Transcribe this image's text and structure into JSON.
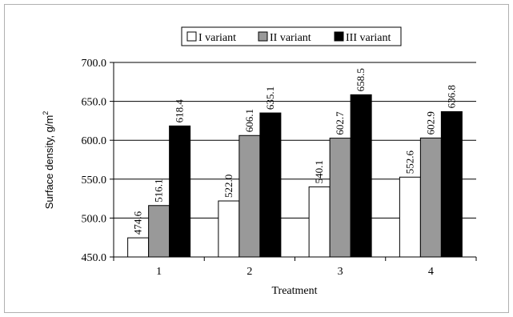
{
  "chart_data": {
    "type": "bar",
    "categories": [
      "1",
      "2",
      "3",
      "4"
    ],
    "series": [
      {
        "name": "I variant",
        "values": [
          474.6,
          522.0,
          540.1,
          552.6
        ],
        "labels": [
          "474.6",
          "522.0",
          "540.1",
          "552.6"
        ],
        "color": "#ffffff"
      },
      {
        "name": "II variant",
        "values": [
          516.1,
          606.1,
          602.7,
          602.9
        ],
        "labels": [
          "516.1",
          "606.1",
          "602.7",
          "602.9"
        ],
        "color": "#999999"
      },
      {
        "name": "III variant",
        "values": [
          618.4,
          635.1,
          658.5,
          636.8
        ],
        "labels": [
          "618.4",
          "635.1",
          "658.5",
          "636.8"
        ],
        "color": "#000000"
      }
    ],
    "xlabel": "Treatment",
    "ylabel": "Surface density, g/m",
    "ylabel_sup": "2",
    "ylim": [
      450,
      700
    ],
    "yticks": [
      "450.0",
      "500.0",
      "550.0",
      "600.0",
      "650.0",
      "700.0"
    ],
    "grid": true,
    "legend_position": "top"
  }
}
